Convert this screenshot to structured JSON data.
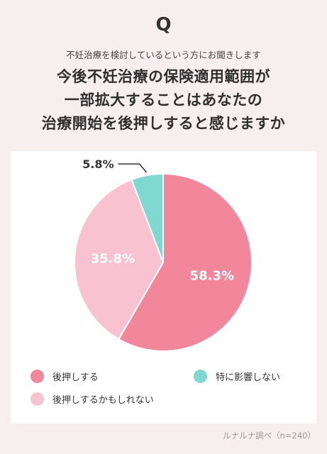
{
  "header": {
    "q_mark": "Q",
    "subtitle": "不妊治療を検討しているという方にお聞きします",
    "title_lines": [
      "今後不妊治療の保険適用範囲が",
      "一部拡大することはあなたの",
      "治療開始を後押しすると感じますか"
    ]
  },
  "chart_data": {
    "type": "pie",
    "slices": [
      {
        "label": "後押しする",
        "value": 58.3,
        "value_label": "58.3%",
        "color": "#f2879b"
      },
      {
        "label": "後押しするかもしれない",
        "value": 35.8,
        "value_label": "35.8%",
        "color": "#f9c2d1"
      },
      {
        "label": "特に影響しない",
        "value": 5.8,
        "value_label": "5.8%",
        "color": "#7fd9d0"
      }
    ],
    "start": "12 o'clock, clockwise"
  },
  "legend": [
    {
      "label": "後押しする",
      "color": "#f2879b"
    },
    {
      "label": "特に影響しない",
      "color": "#7fd9d0"
    },
    {
      "label": "後押しするかもしれない",
      "color": "#f9c2d1"
    }
  ],
  "source": "ルナルナ調べ（n=240）"
}
